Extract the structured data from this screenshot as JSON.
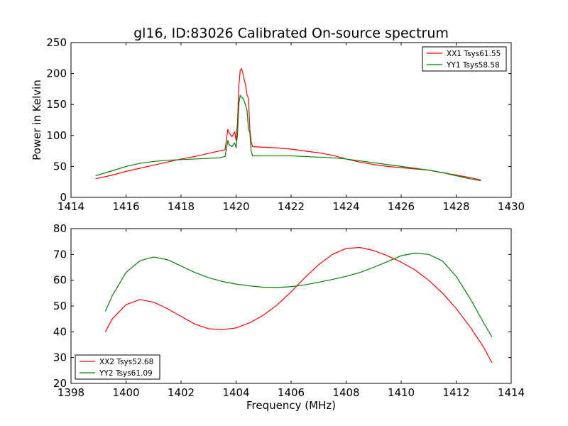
{
  "title": "gl16, ID:83026 Calibrated On-source spectrum",
  "chart_data": [
    {
      "type": "line",
      "xlim": [
        1414,
        1430
      ],
      "ylim": [
        0,
        250
      ],
      "xticks": [
        1414,
        1416,
        1418,
        1420,
        1422,
        1424,
        1426,
        1428,
        1430
      ],
      "yticks": [
        0,
        50,
        100,
        150,
        200,
        250
      ],
      "xlabel": "",
      "ylabel": "Power in Kelvin",
      "legend": "top-right",
      "series": [
        {
          "name": "XX1 Tsys61.55",
          "color": "#ff0000",
          "x": [
            1414.9,
            1415.5,
            1416.0,
            1416.5,
            1417.0,
            1417.5,
            1418.0,
            1418.5,
            1419.0,
            1419.4,
            1419.6,
            1419.7,
            1419.75,
            1419.85,
            1419.95,
            1420.0,
            1420.05,
            1420.1,
            1420.15,
            1420.2,
            1420.25,
            1420.3,
            1420.35,
            1420.4,
            1420.45,
            1420.5,
            1420.55,
            1420.6,
            1421.0,
            1421.5,
            1422.0,
            1422.5,
            1423.0,
            1423.5,
            1424.0,
            1424.5,
            1425.0,
            1425.5,
            1426.0,
            1426.5,
            1427.0,
            1427.5,
            1428.0,
            1428.5,
            1428.9
          ],
          "y": [
            30,
            36,
            42,
            47,
            52,
            57,
            62,
            66,
            71,
            75,
            77,
            110,
            104,
            98,
            106,
            92,
            120,
            180,
            205,
            208,
            200,
            190,
            180,
            165,
            160,
            110,
            90,
            82,
            81,
            80,
            78,
            75,
            72,
            68,
            62,
            57,
            53,
            50,
            48,
            46,
            44,
            40,
            36,
            32,
            28
          ]
        },
        {
          "name": "YY1 Tsys58.58",
          "color": "#008000",
          "x": [
            1414.9,
            1415.5,
            1416.0,
            1416.5,
            1417.0,
            1417.5,
            1418.0,
            1418.5,
            1419.0,
            1419.4,
            1419.6,
            1419.7,
            1419.75,
            1419.85,
            1419.95,
            1420.0,
            1420.05,
            1420.1,
            1420.15,
            1420.2,
            1420.25,
            1420.3,
            1420.35,
            1420.4,
            1420.45,
            1420.5,
            1420.55,
            1420.6,
            1421.0,
            1421.5,
            1422.0,
            1422.5,
            1423.0,
            1423.5,
            1424.0,
            1424.5,
            1425.0,
            1425.5,
            1426.0,
            1426.5,
            1427.0,
            1427.5,
            1428.0,
            1428.5,
            1428.9
          ],
          "y": [
            35,
            43,
            50,
            55,
            58,
            60,
            61,
            62,
            63,
            64,
            66,
            92,
            85,
            82,
            88,
            80,
            100,
            150,
            165,
            162,
            160,
            155,
            148,
            140,
            110,
            105,
            75,
            67,
            67,
            67,
            67,
            66,
            65,
            64,
            62,
            59,
            56,
            53,
            50,
            47,
            44,
            40,
            35,
            30,
            27
          ]
        }
      ]
    },
    {
      "type": "line",
      "xlim": [
        1398,
        1414
      ],
      "ylim": [
        20,
        80
      ],
      "xticks": [
        1398,
        1400,
        1402,
        1404,
        1406,
        1408,
        1410,
        1412,
        1414
      ],
      "yticks": [
        20,
        30,
        40,
        50,
        60,
        70,
        80
      ],
      "xlabel": "Frequency (MHz)",
      "ylabel": "",
      "legend": "bottom-left",
      "series": [
        {
          "name": "XX2 Tsys52.68",
          "color": "#ff0000",
          "x": [
            1399.25,
            1399.5,
            1400.0,
            1400.5,
            1401.0,
            1401.5,
            1402.0,
            1402.5,
            1403.0,
            1403.5,
            1404.0,
            1404.5,
            1405.0,
            1405.5,
            1406.0,
            1406.5,
            1407.0,
            1407.5,
            1408.0,
            1408.5,
            1409.0,
            1409.5,
            1410.0,
            1410.5,
            1411.0,
            1411.5,
            1412.0,
            1412.5,
            1413.0,
            1413.3
          ],
          "y": [
            40,
            45,
            50.5,
            52.5,
            51.5,
            49,
            46,
            43,
            41.2,
            40.8,
            41.5,
            43.5,
            46.5,
            50.5,
            55.5,
            61,
            66,
            70,
            72.3,
            72.7,
            71.5,
            69.5,
            67,
            64,
            60,
            55,
            49,
            42,
            34,
            28
          ]
        },
        {
          "name": "YY2 Tsys61.09",
          "color": "#008000",
          "x": [
            1399.25,
            1399.5,
            1400.0,
            1400.5,
            1401.0,
            1401.5,
            1402.0,
            1402.5,
            1403.0,
            1403.5,
            1404.0,
            1404.5,
            1405.0,
            1405.5,
            1406.0,
            1406.5,
            1407.0,
            1407.5,
            1408.0,
            1408.5,
            1409.0,
            1409.5,
            1410.0,
            1410.5,
            1411.0,
            1411.5,
            1412.0,
            1412.5,
            1413.0,
            1413.3
          ],
          "y": [
            48,
            54,
            63,
            67.5,
            69,
            68,
            65.5,
            63,
            61,
            59.5,
            58.5,
            57.8,
            57.3,
            57.2,
            57.5,
            58.2,
            59.2,
            60.3,
            61.5,
            63,
            65,
            67.2,
            69.5,
            70.5,
            70,
            67.5,
            61.5,
            53,
            43.5,
            38
          ]
        }
      ]
    }
  ]
}
